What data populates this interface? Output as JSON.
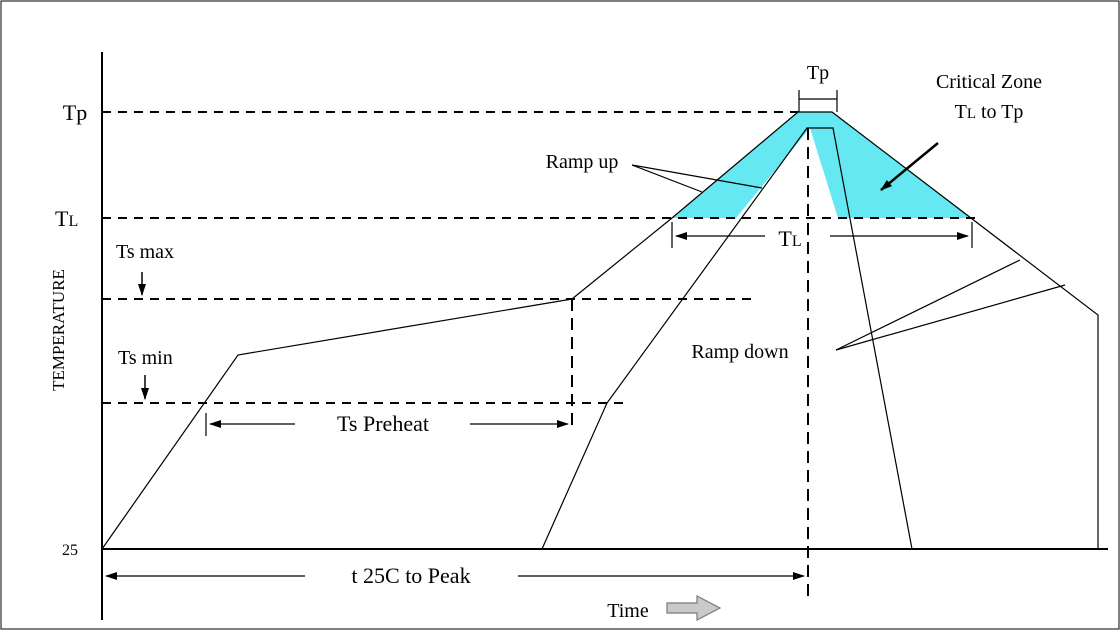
{
  "diagram": {
    "y_axis_title": "TEMPERATURE",
    "x_axis_title": "Time",
    "temperature_levels": {
      "tp": "Tp",
      "tl_main": "T",
      "tl_sub": "L",
      "ts_max": "Ts max",
      "ts_min": "Ts min",
      "base": "25"
    },
    "annotations": {
      "tp_duration": "Tp",
      "critical_zone_line1": "Critical Zone",
      "critical_zone_line2_t": "T",
      "critical_zone_line2_l": "L",
      "critical_zone_line2_rest": " to Tp",
      "ramp_up": "Ramp up",
      "ramp_down": "Ramp down",
      "tl_duration_main": "T",
      "tl_duration_sub": "L",
      "ts_preheat": "Ts Preheat",
      "t25_to_peak": "t 25C to Peak"
    },
    "colors": {
      "critical_zone_fill": "#66e8f2",
      "line": "#000000",
      "time_arrow_fill": "#c9c9c9",
      "time_arrow_stroke": "#7a7a7a"
    }
  }
}
